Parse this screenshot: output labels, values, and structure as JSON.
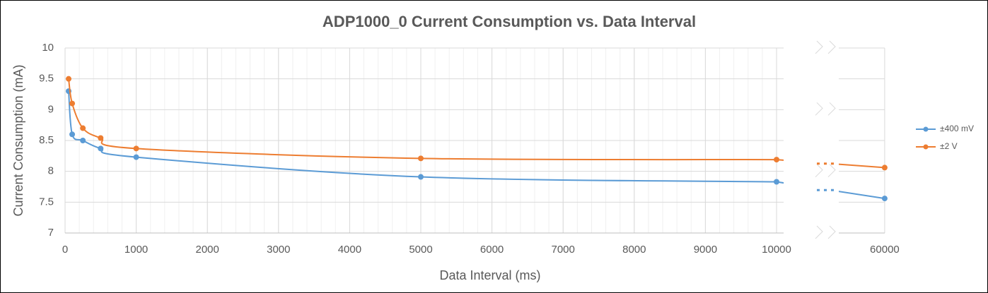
{
  "chart_data": {
    "type": "line",
    "title": "ADP1000_0 Current Consumption vs. Data Interval",
    "x_label": "Data Interval (ms)",
    "y_label": "Current Consumption (mA)",
    "x": [
      50,
      100,
      250,
      500,
      1000,
      5000,
      10000,
      60000
    ],
    "series": [
      {
        "name": "±400 mV",
        "color": "#5b9bd5",
        "values": [
          9.3,
          8.6,
          8.5,
          8.37,
          8.23,
          7.91,
          7.83,
          7.56
        ]
      },
      {
        "name": "±2 V",
        "color": "#ed7d31",
        "values": [
          9.5,
          9.1,
          8.7,
          8.54,
          8.37,
          8.21,
          8.19,
          8.06
        ]
      }
    ],
    "xlim": [
      0,
      60000
    ],
    "xticks": [
      0,
      1000,
      2000,
      3000,
      4000,
      5000,
      6000,
      7000,
      8000,
      9000,
      10000,
      60000
    ],
    "x_axis_break": true,
    "ylim": [
      7,
      10
    ],
    "yticks": [
      7,
      7.5,
      8,
      8.5,
      9,
      9.5,
      10
    ],
    "grid": true,
    "legend": "right"
  }
}
